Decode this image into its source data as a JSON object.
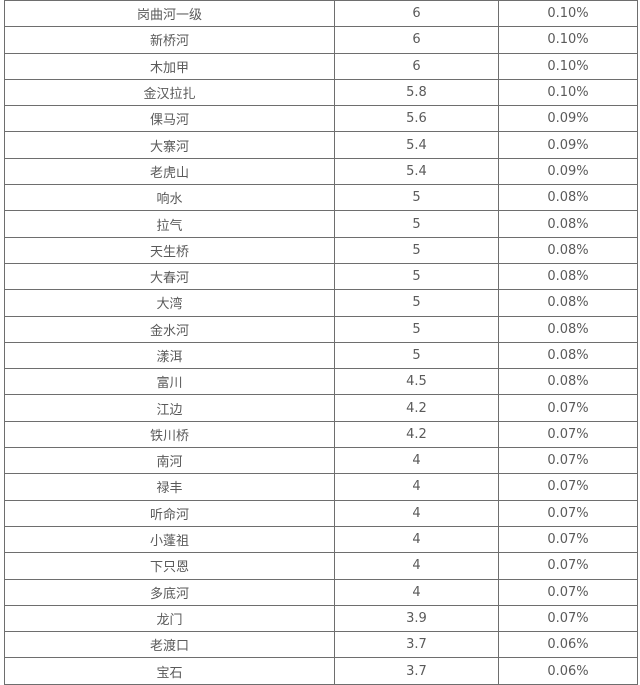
{
  "table": {
    "rows": [
      [
        "岗曲河一级",
        "6",
        "0.10%"
      ],
      [
        "新桥河",
        "6",
        "0.10%"
      ],
      [
        "木加甲",
        "6",
        "0.10%"
      ],
      [
        "金汉拉扎",
        "5.8",
        "0.10%"
      ],
      [
        "倮马河",
        "5.6",
        "0.09%"
      ],
      [
        "大寨河",
        "5.4",
        "0.09%"
      ],
      [
        "老虎山",
        "5.4",
        "0.09%"
      ],
      [
        "响水",
        "5",
        "0.08%"
      ],
      [
        "拉气",
        "5",
        "0.08%"
      ],
      [
        "天生桥",
        "5",
        "0.08%"
      ],
      [
        "大春河",
        "5",
        "0.08%"
      ],
      [
        "大湾",
        "5",
        "0.08%"
      ],
      [
        "金水河",
        "5",
        "0.08%"
      ],
      [
        "漾洱",
        "5",
        "0.08%"
      ],
      [
        "富川",
        "4.5",
        "0.08%"
      ],
      [
        "江边",
        "4.2",
        "0.07%"
      ],
      [
        "铁川桥",
        "4.2",
        "0.07%"
      ],
      [
        "南河",
        "4",
        "0.07%"
      ],
      [
        "禄丰",
        "4",
        "0.07%"
      ],
      [
        "听命河",
        "4",
        "0.07%"
      ],
      [
        "小蓬祖",
        "4",
        "0.07%"
      ],
      [
        "下只恩",
        "4",
        "0.07%"
      ],
      [
        "多底河",
        "4",
        "0.07%"
      ],
      [
        "龙门",
        "3.9",
        "0.07%"
      ],
      [
        "老渡口",
        "3.7",
        "0.06%"
      ],
      [
        "宝石",
        "3.7",
        "0.06%"
      ]
    ]
  }
}
